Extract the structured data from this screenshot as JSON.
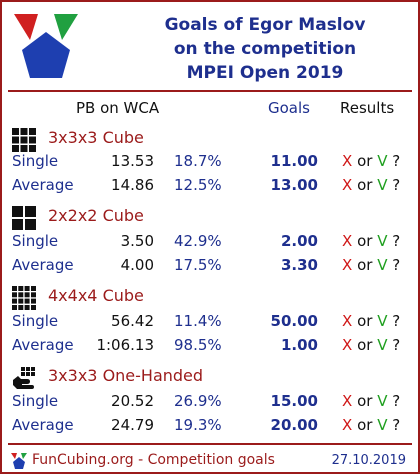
{
  "header": {
    "title_lines": [
      "Goals of Egor Maslov",
      "on the competition",
      "MPEI Open 2019"
    ]
  },
  "columns": {
    "pb": "PB on WCA",
    "goals": "Goals",
    "results": "Results"
  },
  "events": [
    {
      "name": "3x3x3 Cube",
      "icon": "cube-3x3-icon",
      "rows": [
        {
          "type": "Single",
          "pb": "13.53",
          "pct": "18.7%",
          "goal": "11.00"
        },
        {
          "type": "Average",
          "pb": "14.86",
          "pct": "12.5%",
          "goal": "13.00"
        }
      ]
    },
    {
      "name": "2x2x2 Cube",
      "icon": "cube-2x2-icon",
      "rows": [
        {
          "type": "Single",
          "pb": "3.50",
          "pct": "42.9%",
          "goal": "2.00"
        },
        {
          "type": "Average",
          "pb": "4.00",
          "pct": "17.5%",
          "goal": "3.30"
        }
      ]
    },
    {
      "name": "4x4x4 Cube",
      "icon": "cube-4x4-icon",
      "rows": [
        {
          "type": "Single",
          "pb": "56.42",
          "pct": "11.4%",
          "goal": "50.00"
        },
        {
          "type": "Average",
          "pb": "1:06.13",
          "pct": "98.5%",
          "goal": "1.00"
        }
      ]
    },
    {
      "name": "3x3x3 One-Handed",
      "icon": "one-handed-icon",
      "rows": [
        {
          "type": "Single",
          "pb": "20.52",
          "pct": "26.9%",
          "goal": "15.00"
        },
        {
          "type": "Average",
          "pb": "24.79",
          "pct": "19.3%",
          "goal": "20.00"
        }
      ]
    }
  ],
  "result_marks": {
    "x": "X",
    "or": "or",
    "v": "V",
    "q": "?"
  },
  "footer": {
    "text": "FunCubing.org - Competition goals",
    "date": "27.10.2019"
  },
  "colors": {
    "accent_red": "#9b1b1b",
    "accent_blue": "#1e2f8e",
    "x_red": "#d01818",
    "v_green": "#20a020"
  }
}
